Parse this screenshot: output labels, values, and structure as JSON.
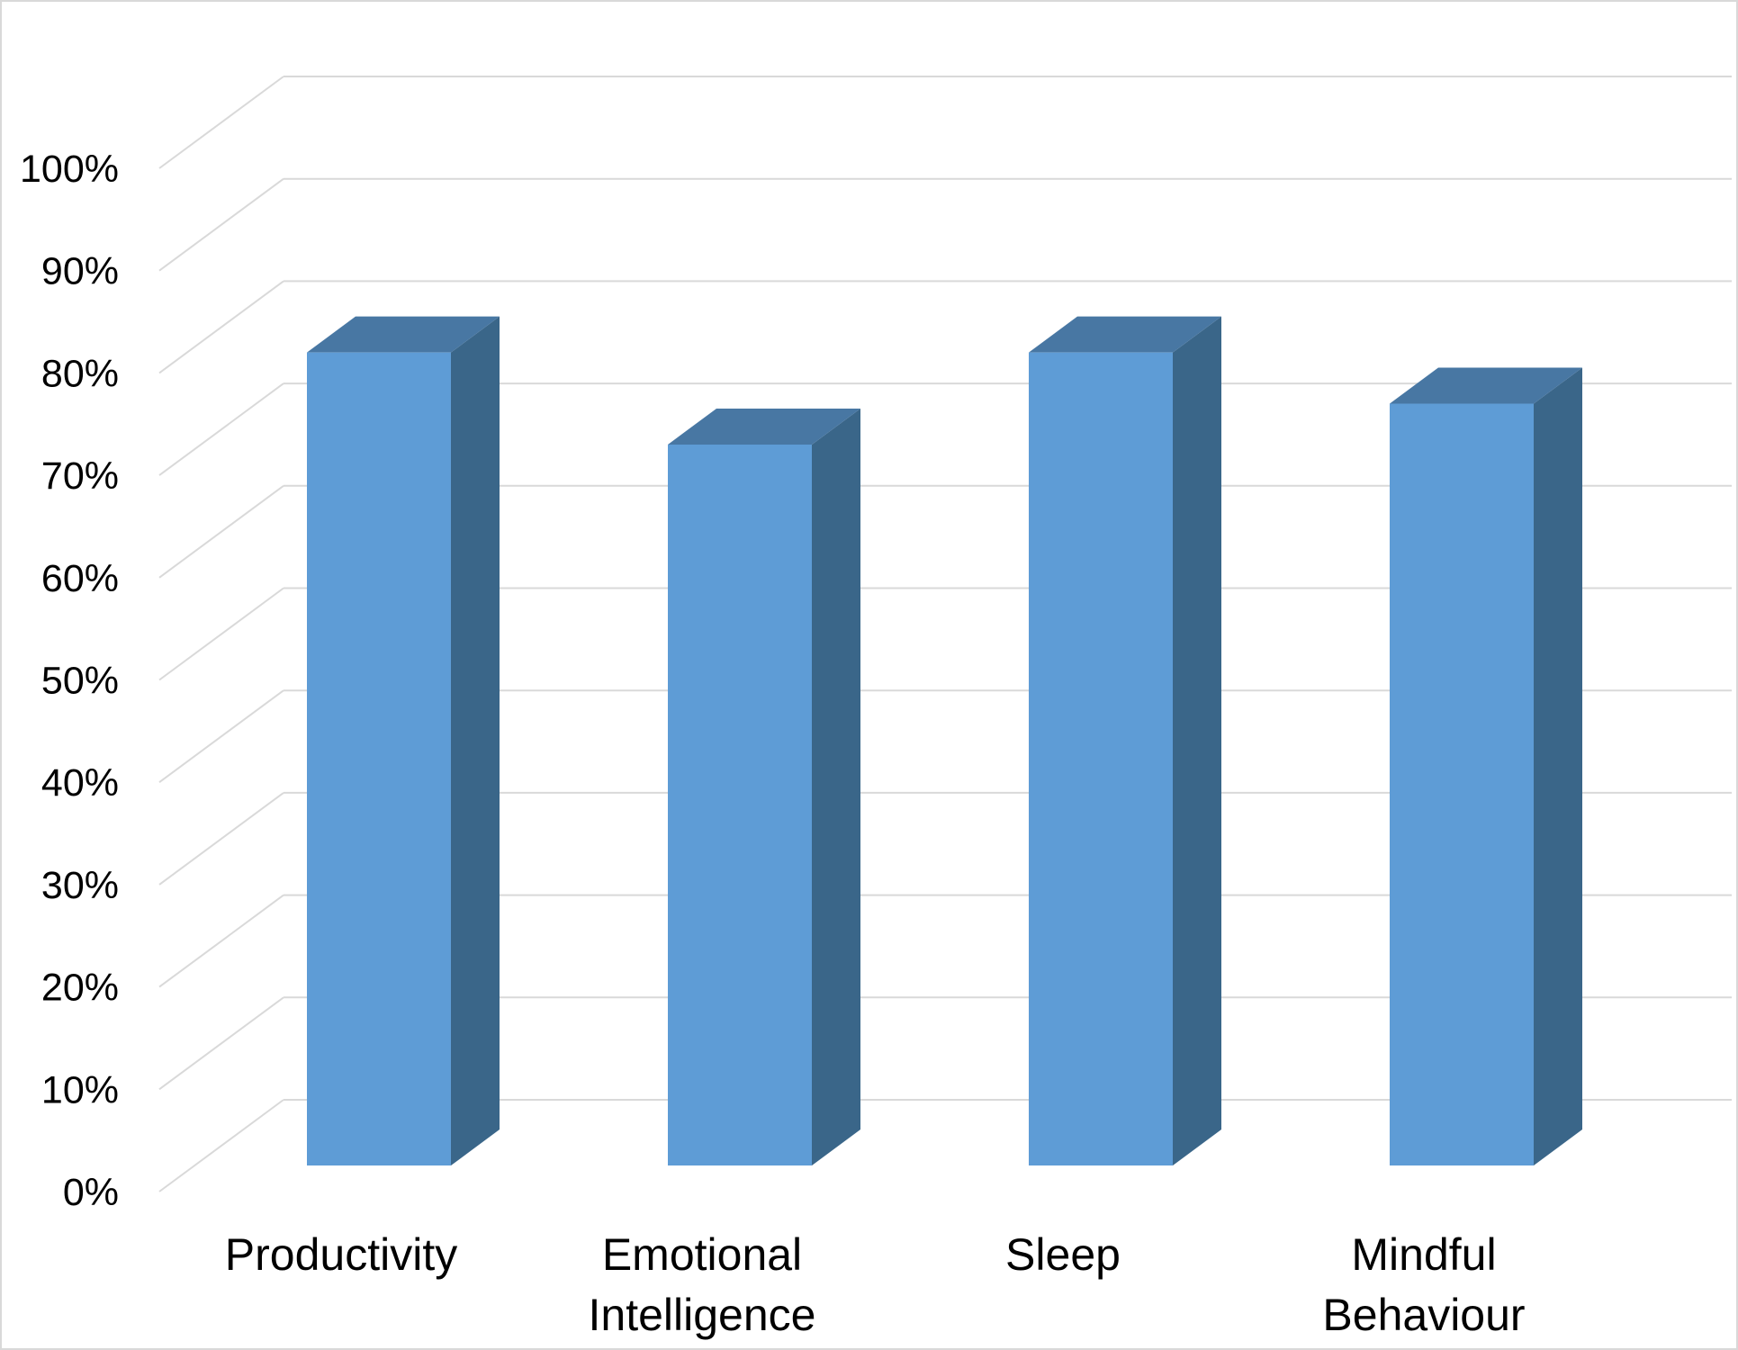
{
  "chart_data": {
    "type": "bar",
    "style": "3d-column",
    "categories": [
      [
        "Productivity"
      ],
      [
        "Emotional",
        "Intelligence"
      ],
      [
        "Sleep"
      ],
      [
        "Mindful",
        "Behaviour"
      ]
    ],
    "values": [
      82,
      73,
      82,
      77
    ],
    "ylim": [
      0,
      100
    ],
    "yticks": [
      "0%",
      "10%",
      "20%",
      "30%",
      "40%",
      "50%",
      "60%",
      "70%",
      "80%",
      "90%",
      "100%"
    ],
    "grid": true,
    "legend": "none",
    "colors": {
      "bar_front": "#5e9cd6",
      "bar_side": "#3a6689",
      "bar_top": "#4877a3",
      "grid": "#d9d9d9"
    }
  }
}
